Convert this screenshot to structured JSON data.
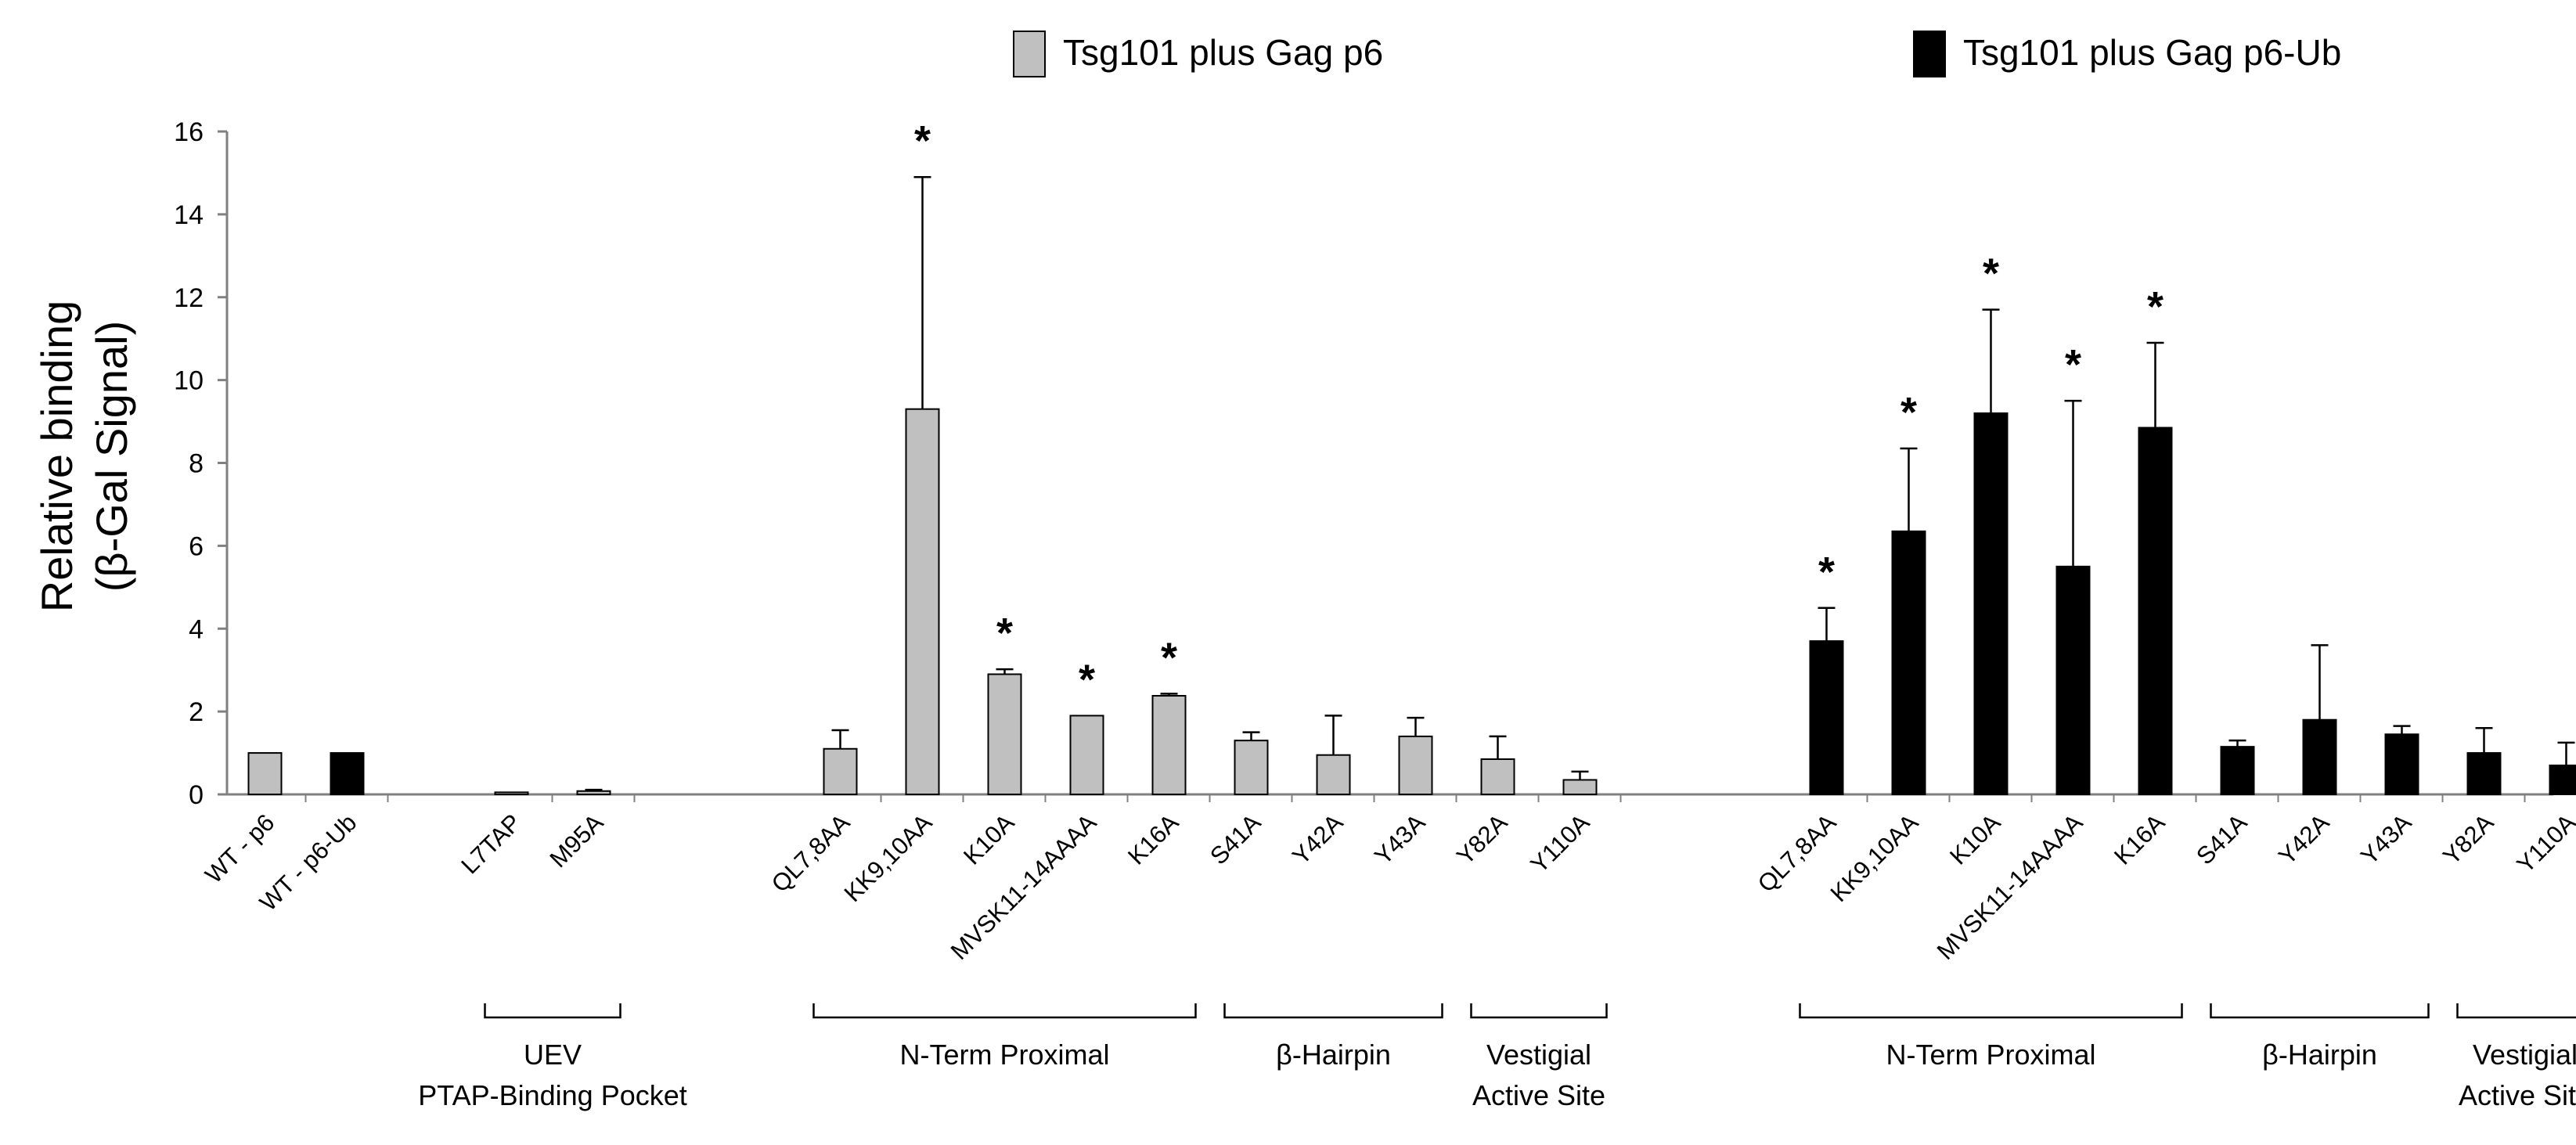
{
  "chart_data": {
    "type": "bar",
    "ylabel_line1": "Relative binding",
    "ylabel_line2": "(β-Gal Signal)",
    "ylim": [
      0,
      16
    ],
    "yticks": [
      0,
      2,
      4,
      6,
      8,
      10,
      12,
      14,
      16
    ],
    "legend": [
      {
        "name": "Tsg101 plus Gag p6",
        "color": "#c0c0c0"
      },
      {
        "name": "Tsg101 plus Gag p6-Ub",
        "color": "#000000"
      }
    ],
    "significance_marker": "*",
    "bars": [
      {
        "category": "WT - p6",
        "value": 1.0,
        "error": 0,
        "series": 0,
        "sig": false
      },
      {
        "category": "WT - p6-Ub",
        "value": 1.0,
        "error": 0,
        "series": 1,
        "sig": false
      },
      {
        "category": "L7TAP",
        "value": 0.05,
        "error": 0,
        "series": 0,
        "sig": false
      },
      {
        "category": "M95A",
        "value": 0.08,
        "error": 0.03,
        "series": 0,
        "sig": false
      },
      {
        "category": "QL7,8AA",
        "value": 1.1,
        "error": 0.45,
        "series": 0,
        "sig": false
      },
      {
        "category": "KK9,10AA",
        "value": 9.3,
        "error": 5.6,
        "series": 0,
        "sig": true
      },
      {
        "category": "K10A",
        "value": 2.9,
        "error": 0.12,
        "series": 0,
        "sig": true
      },
      {
        "category": "MVSK11-14AAAA",
        "value": 1.9,
        "error": 0,
        "series": 0,
        "sig": true
      },
      {
        "category": "K16A",
        "value": 2.38,
        "error": 0.05,
        "series": 0,
        "sig": true
      },
      {
        "category": "S41A",
        "value": 1.3,
        "error": 0.2,
        "series": 0,
        "sig": false
      },
      {
        "category": "Y42A",
        "value": 0.95,
        "error": 0.95,
        "series": 0,
        "sig": false
      },
      {
        "category": "Y43A",
        "value": 1.4,
        "error": 0.45,
        "series": 0,
        "sig": false
      },
      {
        "category": "Y82A",
        "value": 0.85,
        "error": 0.55,
        "series": 0,
        "sig": false
      },
      {
        "category": "Y110A",
        "value": 0.35,
        "error": 0.2,
        "series": 0,
        "sig": false
      },
      {
        "category": "QL7,8AA",
        "value": 3.7,
        "error": 0.8,
        "series": 1,
        "sig": true
      },
      {
        "category": "KK9,10AA",
        "value": 6.35,
        "error": 2.0,
        "series": 1,
        "sig": true
      },
      {
        "category": "K10A",
        "value": 9.2,
        "error": 2.5,
        "series": 1,
        "sig": true
      },
      {
        "category": "MVSK11-14AAAA",
        "value": 5.5,
        "error": 4.0,
        "series": 1,
        "sig": true
      },
      {
        "category": "K16A",
        "value": 8.85,
        "error": 2.05,
        "series": 1,
        "sig": true
      },
      {
        "category": "S41A",
        "value": 1.15,
        "error": 0.15,
        "series": 1,
        "sig": false
      },
      {
        "category": "Y42A",
        "value": 1.8,
        "error": 1.8,
        "series": 1,
        "sig": false
      },
      {
        "category": "Y43A",
        "value": 1.45,
        "error": 0.2,
        "series": 1,
        "sig": false
      },
      {
        "category": "Y82A",
        "value": 1.0,
        "error": 0.6,
        "series": 1,
        "sig": false
      },
      {
        "category": "Y110A",
        "value": 0.7,
        "error": 0.55,
        "series": 1,
        "sig": false
      }
    ],
    "groups": [
      {
        "label_lines": [
          "UEV",
          "PTAP-Binding Pocket"
        ],
        "from": "L7TAP",
        "to": "M95A",
        "bar_from": 2,
        "bar_to": 3
      },
      {
        "label_lines": [
          "N-Term Proximal"
        ],
        "bar_from": 4,
        "bar_to": 8
      },
      {
        "label_lines": [
          "β-Hairpin"
        ],
        "bar_from": 9,
        "bar_to": 11
      },
      {
        "label_lines": [
          "Vestigial",
          "Active Site"
        ],
        "bar_from": 12,
        "bar_to": 13
      },
      {
        "label_lines": [
          "N-Term Proximal"
        ],
        "bar_from": 14,
        "bar_to": 18
      },
      {
        "label_lines": [
          "β-Hairpin"
        ],
        "bar_from": 19,
        "bar_to": 21
      },
      {
        "label_lines": [
          "Vestigial",
          "Active Site"
        ],
        "bar_from": 22,
        "bar_to": 23
      }
    ]
  }
}
